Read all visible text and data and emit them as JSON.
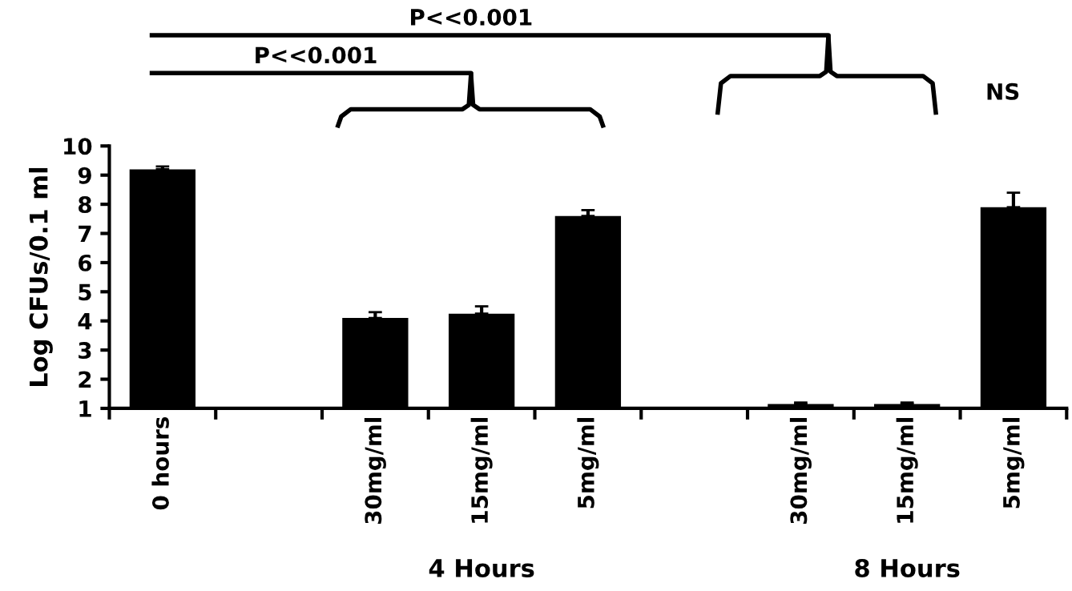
{
  "chart_data": {
    "type": "bar",
    "ylabel": "Log CFUs/0.1 ml",
    "categories": [
      "0 hours",
      null,
      "30mg/ml",
      "15mg/ml",
      "5mg/ml",
      null,
      "30mg/ml",
      "15mg/ml",
      "5mg/ml"
    ],
    "values": [
      9.2,
      null,
      4.1,
      4.25,
      7.6,
      null,
      1.15,
      1.15,
      7.9
    ],
    "errors": [
      0.1,
      null,
      0.2,
      0.25,
      0.2,
      null,
      0.05,
      0.05,
      0.5
    ],
    "color": "#000000",
    "ylim": [
      1,
      10
    ],
    "yticks": [
      1,
      2,
      3,
      4,
      5,
      6,
      7,
      8,
      9,
      10
    ],
    "grid": false,
    "annotations": [
      "P<<0.001",
      "P<<0.001",
      "NS",
      "4 Hours",
      "8 Hours"
    ]
  }
}
